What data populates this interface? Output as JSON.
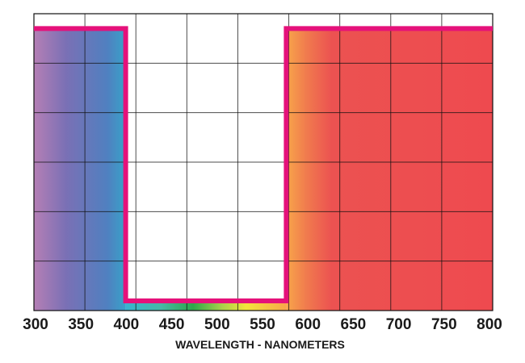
{
  "chart_data": {
    "type": "line",
    "title": "",
    "xlabel": "WAVELENGTH - NANOMETERS",
    "ylabel": "",
    "x_ticks": [
      "300",
      "350",
      "400",
      "450",
      "500",
      "550",
      "600",
      "650",
      "700",
      "750",
      "800"
    ],
    "xlim": [
      300,
      800
    ],
    "ylim": [
      0,
      100
    ],
    "grid": true,
    "series": [
      {
        "color": "#e5117a",
        "points": [
          [
            300,
            95
          ],
          [
            400,
            95
          ],
          [
            400,
            0
          ],
          [
            575,
            0
          ],
          [
            575,
            95
          ],
          [
            800,
            95
          ]
        ]
      }
    ],
    "fill_regions": [
      {
        "x": [
          300,
          400
        ],
        "colors": [
          "#b57fb5",
          "#7070b6",
          "#4f86c1",
          "#3aa0c8"
        ]
      },
      {
        "x": [
          400,
          575
        ],
        "colors": [
          "#3ab6cf",
          "#48b88f",
          "#2fa84a",
          "#a9d24b",
          "#f4e23b",
          "#f8a64a"
        ],
        "strip_only": true
      },
      {
        "x": [
          575,
          800
        ],
        "colors": [
          "#f8a64a",
          "#f07a4e",
          "#ec4f51",
          "#ee4a4f"
        ]
      }
    ]
  }
}
